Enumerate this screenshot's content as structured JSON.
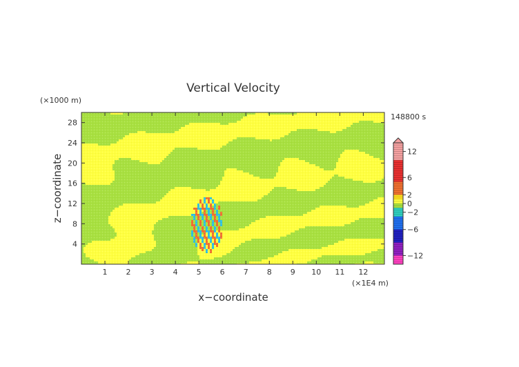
{
  "chart_data": {
    "type": "heatmap",
    "title": "Vertical Velocity",
    "xlabel": "x−coordinate",
    "ylabel": "z−coordinate",
    "x_unit": "(×1E4 m)",
    "y_unit": "(×1000 m)",
    "time_label": "148800 s",
    "xlim": [
      0,
      12.9
    ],
    "ylim": [
      0,
      30
    ],
    "x_ticks": [
      "1",
      "2",
      "3",
      "4",
      "5",
      "6",
      "7",
      "8",
      "9",
      "10",
      "11",
      "12"
    ],
    "y_ticks": [
      "4",
      "8",
      "12",
      "16",
      "20",
      "24",
      "28"
    ],
    "colorbar": {
      "tick_labels": [
        "12",
        "6",
        "2",
        "0",
        "−2",
        "−6",
        "−12"
      ],
      "tick_values": [
        12,
        6,
        2,
        0,
        -2,
        -6,
        -12
      ],
      "range": [
        -14,
        14
      ],
      "colors": {
        "pos_high": "#f4a0a0",
        "pos_mid": "#e83030",
        "pos_low": "#f07030",
        "pos_small": "#ffe020",
        "zero_pos": "#ffff40",
        "zero_neg": "#a8e040",
        "neg_small": "#30d0c0",
        "neg_mid": "#2070f0",
        "neg_high": "#2020c0",
        "neg_deep": "#9020c0",
        "neg_extreme": "#ff40c0"
      }
    },
    "field_colors": {
      "positive": "#ffff40",
      "negative": "#a8e040",
      "strong_positive": "#f07030",
      "strong_negative": "#30c0e0"
    }
  }
}
